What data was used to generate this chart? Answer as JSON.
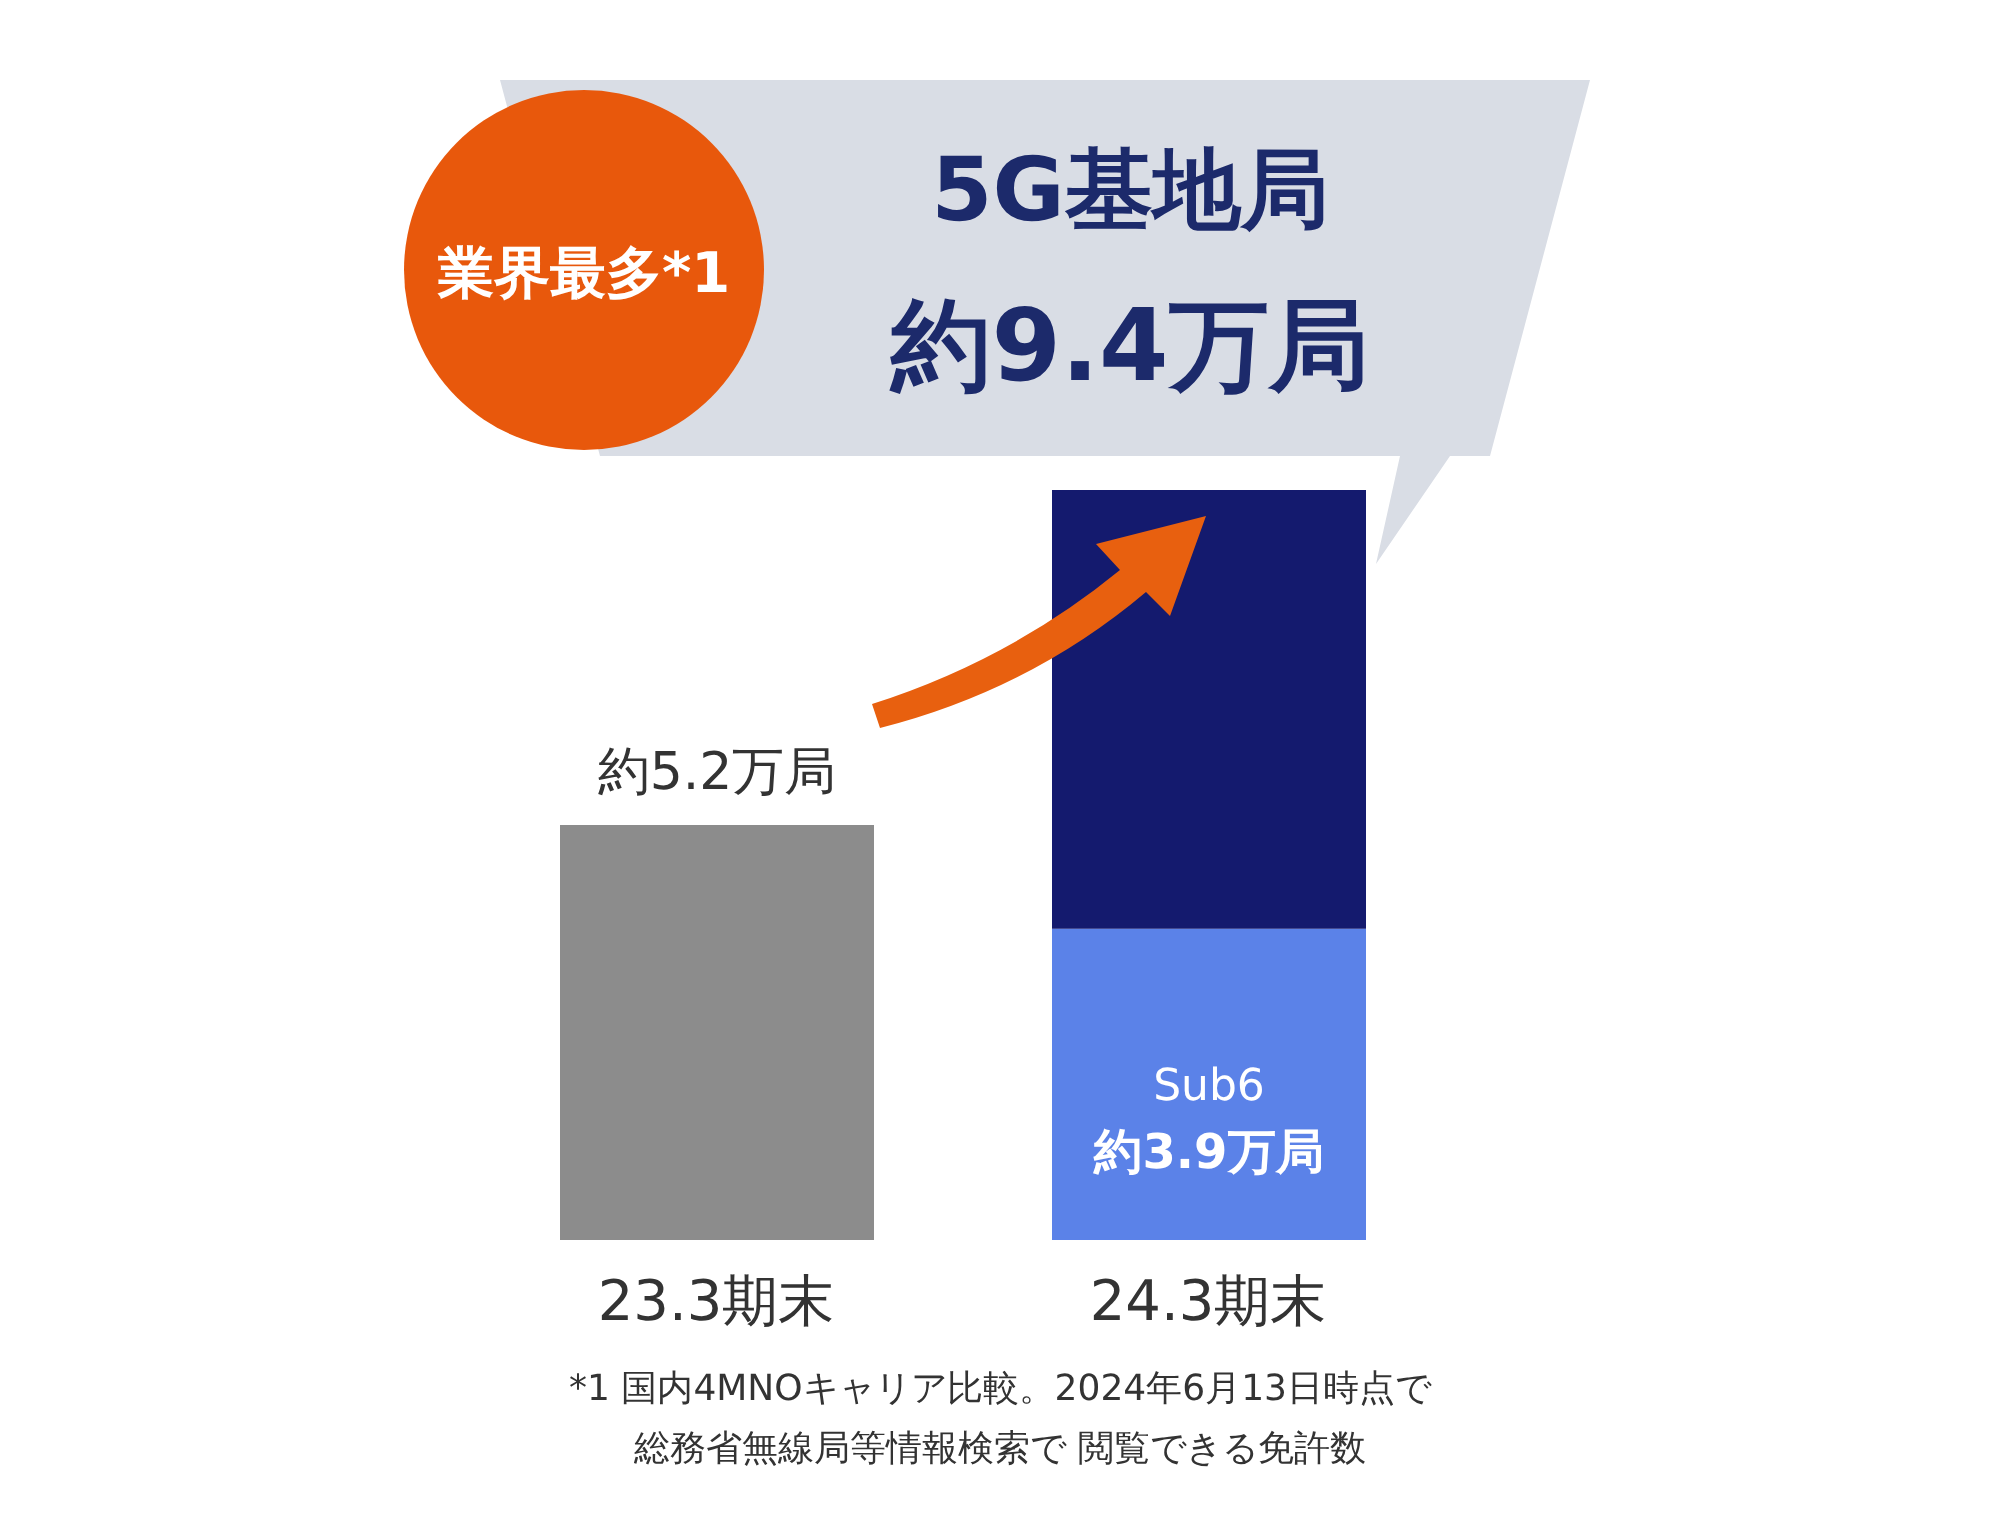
{
  "chart_data": {
    "type": "bar",
    "title": "5G基地局",
    "stacked": true,
    "categories": [
      "23.3期末",
      "24.3期末"
    ],
    "series": [
      {
        "name": "Sub6",
        "color": "#5b82e8",
        "values": [
          null,
          3.9
        ],
        "value_labels": [
          null,
          "約3.9万局"
        ]
      },
      {
        "colors": [
          "#8c8c8c",
          "#141a6e"
        ],
        "values": [
          5.2,
          5.5
        ],
        "value_labels": [
          "約5.2万局",
          null
        ]
      }
    ],
    "totals": [
      null,
      "約9.4万局"
    ],
    "annotations": [
      "業界最多*1",
      "*1 国内4MNOキャリア比較。2024年6月13日時点で",
      "総務省無線局等情報検索で 閲覧できる免許数"
    ]
  }
}
